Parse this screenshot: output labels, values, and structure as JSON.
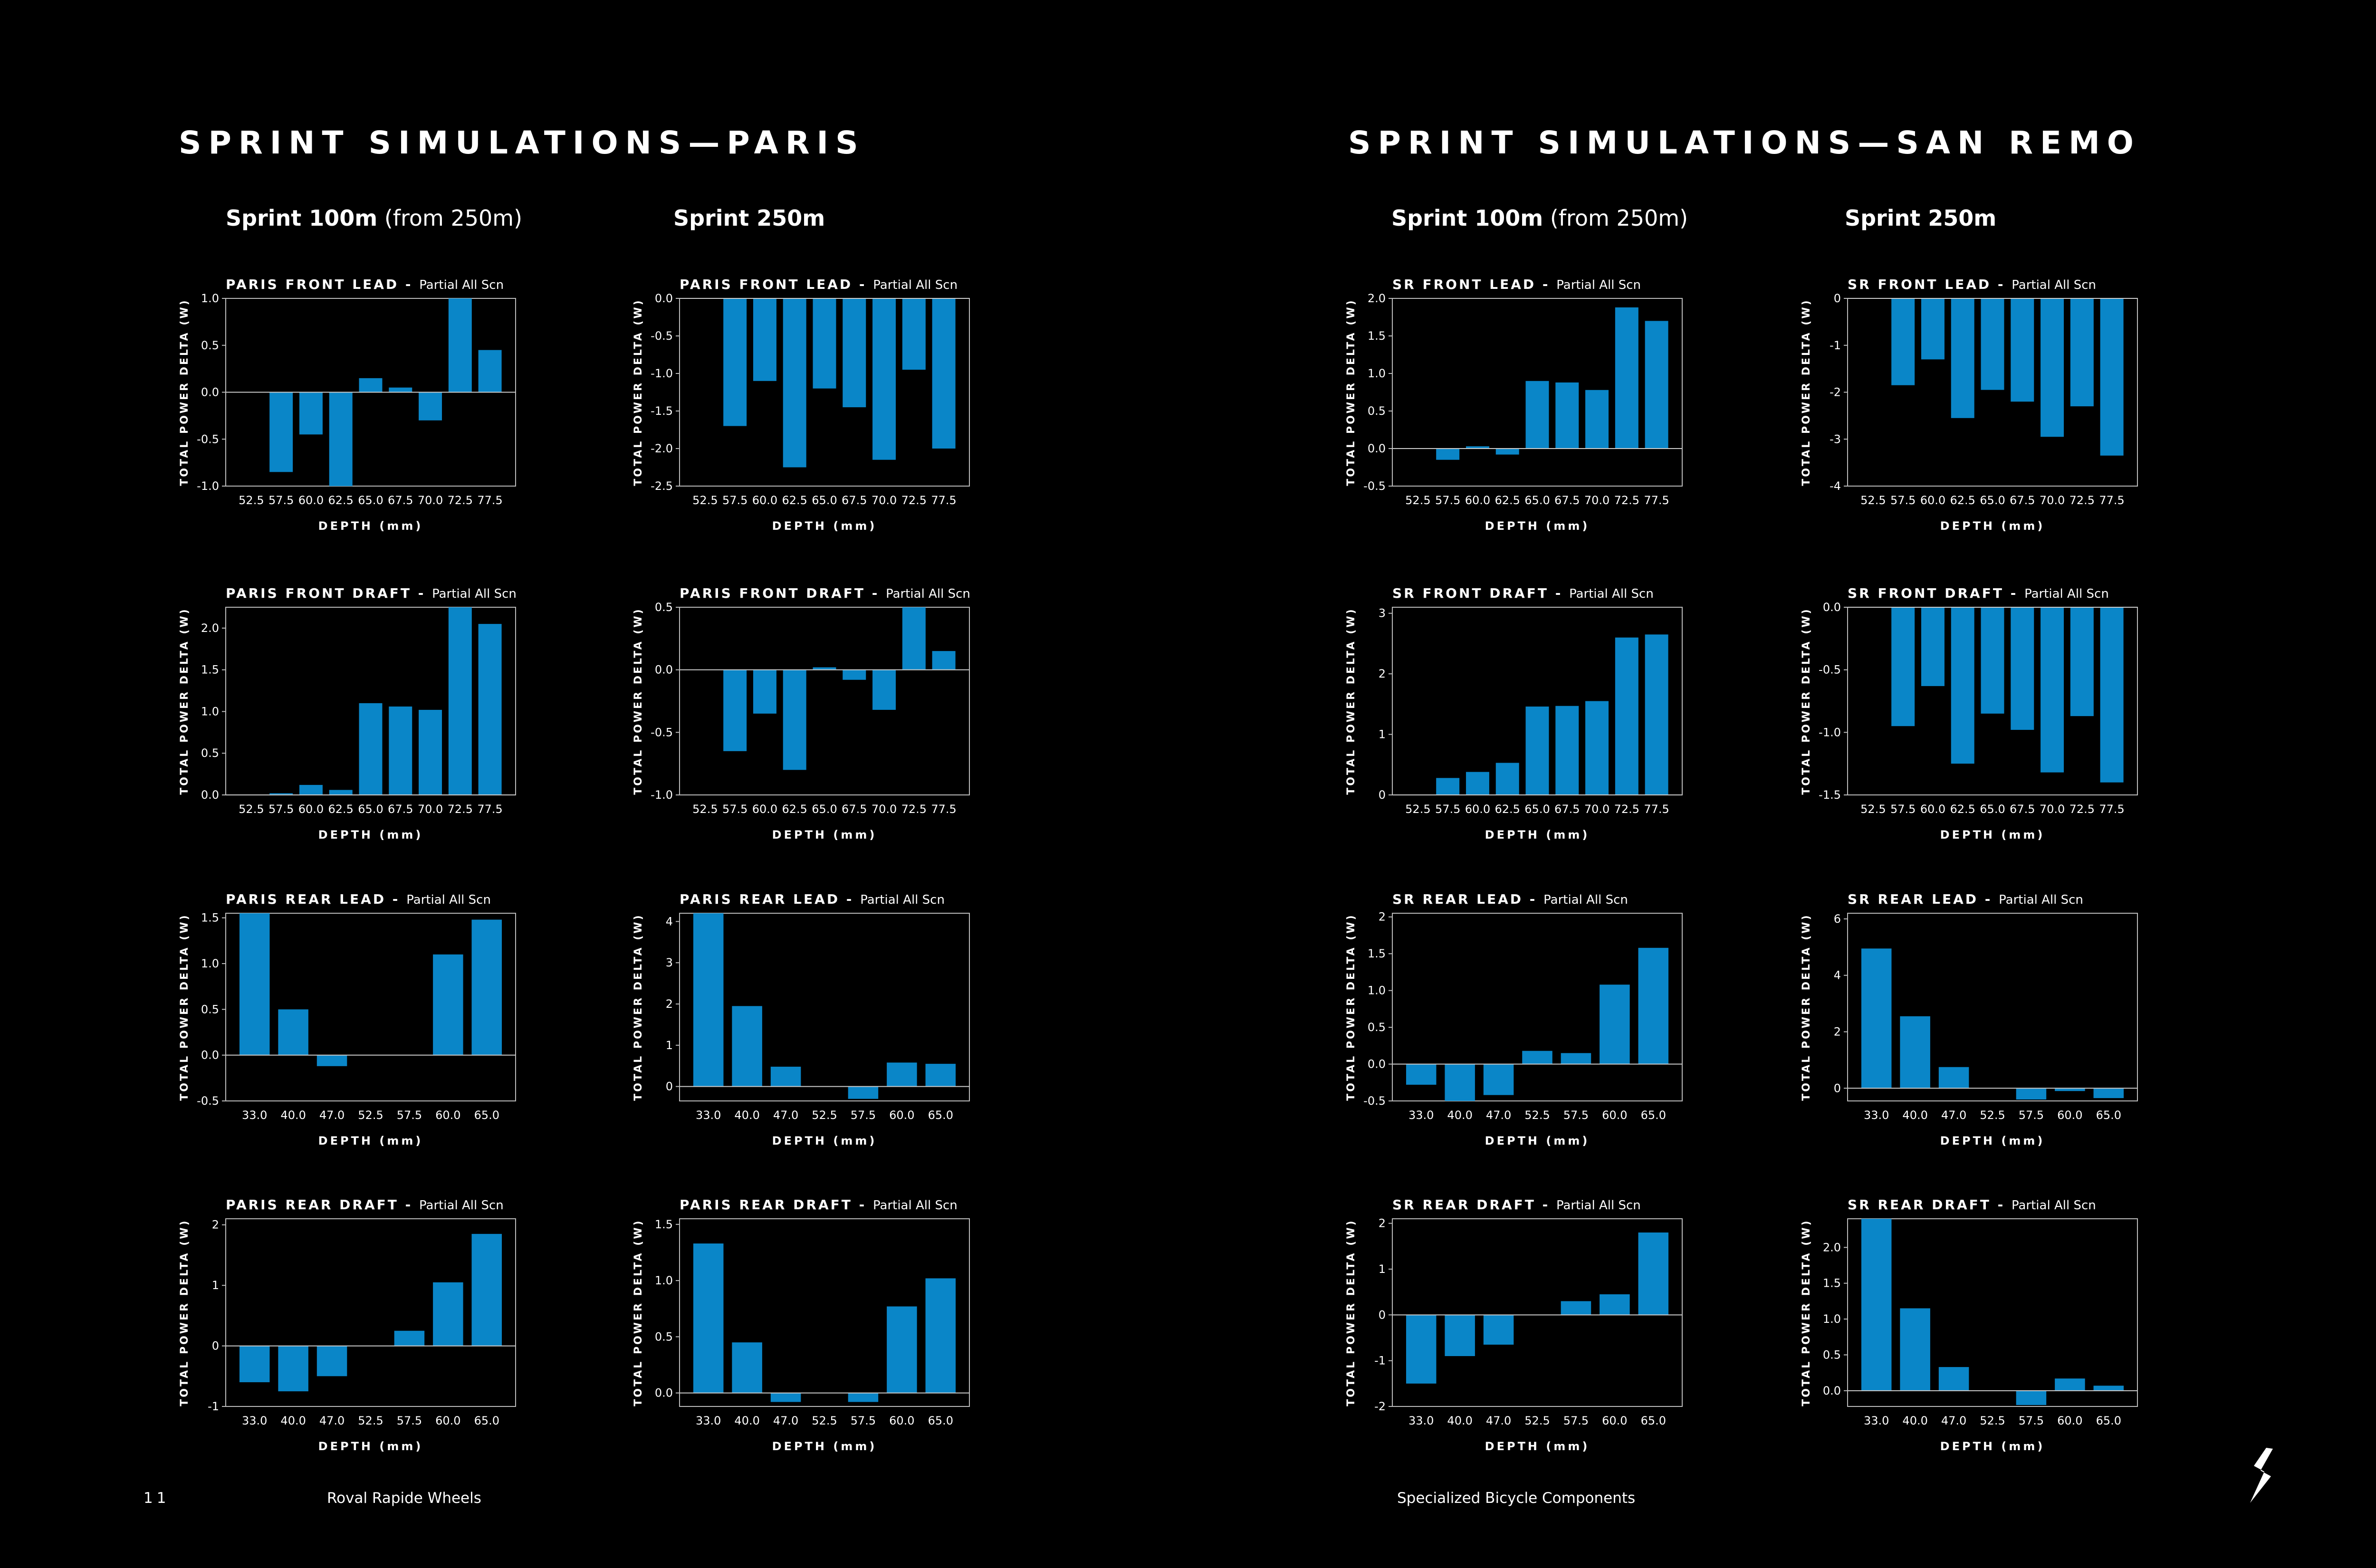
{
  "sections": {
    "paris": "SPRINT SIMULATIONS—PARIS",
    "sanremo": "SPRINT SIMULATIONS—SAN REMO"
  },
  "columns": [
    {
      "bold": "Sprint 100m",
      "rest": " (from 250m)"
    },
    {
      "bold": "Sprint 250m",
      "rest": ""
    },
    {
      "bold": "Sprint 100m",
      "rest": " (from 250m)"
    },
    {
      "bold": "Sprint 250m",
      "rest": ""
    }
  ],
  "footer": {
    "page_number": "11",
    "left_text": "Roval Rapide Wheels",
    "right_text": "Specialized Bicycle Components",
    "logo_icon": "specialized-s-logo-icon"
  },
  "colors": {
    "bar": "#0a86c8",
    "background": "#000000",
    "text": "#ffffff"
  },
  "chart_data": [
    {
      "type": "bar",
      "title": "PARIS FRONT LEAD",
      "subtitle": "Partial All Scn",
      "xlabel": "DEPTH (mm)",
      "ylabel": "TOTAL POWER DELTA (W)",
      "categories": [
        "52.5",
        "57.5",
        "60.0",
        "62.5",
        "65.0",
        "67.5",
        "70.0",
        "72.5",
        "77.5"
      ],
      "values": [
        0,
        -0.85,
        -0.45,
        -1.05,
        0.15,
        0.05,
        -0.3,
        1.05,
        0.45
      ],
      "ylim": [
        -1,
        1
      ],
      "yticks": [
        -1,
        -0.5,
        0,
        0.5,
        1
      ],
      "yticklabels": [
        "-1.0",
        "-0.5",
        "0.0",
        "0.5",
        "1.0"
      ]
    },
    {
      "type": "bar",
      "title": "PARIS FRONT LEAD",
      "subtitle": "Partial All Scn",
      "xlabel": "DEPTH (mm)",
      "ylabel": "TOTAL POWER DELTA (W)",
      "categories": [
        "52.5",
        "57.5",
        "60.0",
        "62.5",
        "65.0",
        "67.5",
        "70.0",
        "72.5",
        "77.5"
      ],
      "values": [
        0,
        -1.7,
        -1.1,
        -2.25,
        -1.2,
        -1.45,
        -2.15,
        -0.95,
        -2.0
      ],
      "ylim": [
        -2.5,
        0
      ],
      "yticks": [
        -2.5,
        -2,
        -1.5,
        -1,
        -0.5,
        0
      ],
      "yticklabels": [
        "-2.5",
        "-2.0",
        "-1.5",
        "-1.0",
        "-0.5",
        "0.0"
      ]
    },
    {
      "type": "bar",
      "title": "SR FRONT LEAD",
      "subtitle": "Partial All Scn",
      "xlabel": "DEPTH (mm)",
      "ylabel": "TOTAL POWER DELTA (W)",
      "categories": [
        "52.5",
        "57.5",
        "60.0",
        "62.5",
        "65.0",
        "67.5",
        "70.0",
        "72.5",
        "77.5"
      ],
      "values": [
        0,
        -0.15,
        0.03,
        -0.08,
        0.9,
        0.88,
        0.78,
        1.88,
        1.7
      ],
      "ylim": [
        -0.5,
        2
      ],
      "yticks": [
        -0.5,
        0,
        0.5,
        1,
        1.5,
        2
      ],
      "yticklabels": [
        "-0.5",
        "0.0",
        "0.5",
        "1.0",
        "1.5",
        "2.0"
      ]
    },
    {
      "type": "bar",
      "title": "SR FRONT LEAD",
      "subtitle": "Partial All Scn",
      "xlabel": "DEPTH (mm)",
      "ylabel": "TOTAL POWER DELTA (W)",
      "categories": [
        "52.5",
        "57.5",
        "60.0",
        "62.5",
        "65.0",
        "67.5",
        "70.0",
        "72.5",
        "77.5"
      ],
      "values": [
        0,
        -1.85,
        -1.3,
        -2.55,
        -1.95,
        -2.2,
        -2.95,
        -2.3,
        -3.35
      ],
      "ylim": [
        -4,
        0
      ],
      "yticks": [
        -4,
        -3,
        -2,
        -1,
        0
      ],
      "yticklabels": [
        "-4",
        "-3",
        "-2",
        "-1",
        "0"
      ]
    },
    {
      "type": "bar",
      "title": "PARIS FRONT DRAFT",
      "subtitle": "Partial All Scn",
      "xlabel": "DEPTH (mm)",
      "ylabel": "TOTAL POWER DELTA (W)",
      "categories": [
        "52.5",
        "57.5",
        "60.0",
        "62.5",
        "65.0",
        "67.5",
        "70.0",
        "72.5",
        "77.5"
      ],
      "values": [
        0,
        0.02,
        0.12,
        0.06,
        1.1,
        1.06,
        1.02,
        2.3,
        2.05
      ],
      "ylim": [
        0,
        2.25
      ],
      "yticks": [
        0,
        0.5,
        1,
        1.5,
        2
      ],
      "yticklabels": [
        "0.0",
        "0.5",
        "1.0",
        "1.5",
        "2.0"
      ]
    },
    {
      "type": "bar",
      "title": "PARIS FRONT DRAFT",
      "subtitle": "Partial All Scn",
      "xlabel": "DEPTH (mm)",
      "ylabel": "TOTAL POWER DELTA (W)",
      "categories": [
        "52.5",
        "57.5",
        "60.0",
        "62.5",
        "65.0",
        "67.5",
        "70.0",
        "72.5",
        "77.5"
      ],
      "values": [
        0,
        -0.65,
        -0.35,
        -0.8,
        0.02,
        -0.08,
        -0.32,
        0.6,
        0.15
      ],
      "ylim": [
        -1,
        0.5
      ],
      "yticks": [
        -1,
        -0.5,
        0,
        0.5
      ],
      "yticklabels": [
        "-1.0",
        "-0.5",
        "0.0",
        "0.5"
      ]
    },
    {
      "type": "bar",
      "title": "SR FRONT DRAFT",
      "subtitle": "Partial All Scn",
      "xlabel": "DEPTH (mm)",
      "ylabel": "TOTAL POWER DELTA (W)",
      "categories": [
        "52.5",
        "57.5",
        "60.0",
        "62.5",
        "65.0",
        "67.5",
        "70.0",
        "72.5",
        "77.5"
      ],
      "values": [
        0,
        0.28,
        0.38,
        0.53,
        1.46,
        1.47,
        1.55,
        2.6,
        2.65
      ],
      "ylim": [
        0,
        3.1
      ],
      "yticks": [
        0,
        1,
        2,
        3
      ],
      "yticklabels": [
        "0",
        "1",
        "2",
        "3"
      ]
    },
    {
      "type": "bar",
      "title": "SR FRONT DRAFT",
      "subtitle": "Partial All Scn",
      "xlabel": "DEPTH (mm)",
      "ylabel": "TOTAL POWER DELTA (W)",
      "categories": [
        "52.5",
        "57.5",
        "60.0",
        "62.5",
        "65.0",
        "67.5",
        "70.0",
        "72.5",
        "77.5"
      ],
      "values": [
        0,
        -0.95,
        -0.63,
        -1.25,
        -0.85,
        -0.98,
        -1.32,
        -0.87,
        -1.4
      ],
      "ylim": [
        -1.5,
        0
      ],
      "yticks": [
        -1.5,
        -1,
        -0.5,
        0
      ],
      "yticklabels": [
        "-1.5",
        "-1.0",
        "-0.5",
        "0.0"
      ]
    },
    {
      "type": "bar",
      "title": "PARIS REAR LEAD",
      "subtitle": "Partial All Scn",
      "xlabel": "DEPTH (mm)",
      "ylabel": "TOTAL POWER DELTA (W)",
      "categories": [
        "33.0",
        "40.0",
        "47.0",
        "52.5",
        "57.5",
        "60.0",
        "65.0"
      ],
      "values": [
        1.55,
        0.5,
        -0.12,
        0,
        0,
        1.1,
        1.48
      ],
      "ylim": [
        -0.5,
        1.55
      ],
      "yticks": [
        -0.5,
        0,
        0.5,
        1,
        1.5
      ],
      "yticklabels": [
        "-0.5",
        "0.0",
        "0.5",
        "1.0",
        "1.5"
      ]
    },
    {
      "type": "bar",
      "title": "PARIS REAR LEAD",
      "subtitle": "Partial All Scn",
      "xlabel": "DEPTH (mm)",
      "ylabel": "TOTAL POWER DELTA (W)",
      "categories": [
        "33.0",
        "40.0",
        "47.0",
        "52.5",
        "57.5",
        "60.0",
        "65.0"
      ],
      "values": [
        4.2,
        1.95,
        0.48,
        0,
        -0.3,
        0.58,
        0.55
      ],
      "ylim": [
        -0.35,
        4.2
      ],
      "yticks": [
        0,
        1,
        2,
        3,
        4
      ],
      "yticklabels": [
        "0",
        "1",
        "2",
        "3",
        "4"
      ]
    },
    {
      "type": "bar",
      "title": "SR REAR LEAD",
      "subtitle": "Partial All Scn",
      "xlabel": "DEPTH (mm)",
      "ylabel": "TOTAL POWER DELTA (W)",
      "categories": [
        "33.0",
        "40.0",
        "47.0",
        "52.5",
        "57.5",
        "60.0",
        "65.0"
      ],
      "values": [
        -0.28,
        -0.5,
        -0.42,
        0.18,
        0.15,
        1.08,
        1.58
      ],
      "ylim": [
        -0.5,
        2.05
      ],
      "yticks": [
        -0.5,
        0,
        0.5,
        1,
        1.5,
        2
      ],
      "yticklabels": [
        "-0.5",
        "0.0",
        "0.5",
        "1.0",
        "1.5",
        "2"
      ]
    },
    {
      "type": "bar",
      "title": "SR REAR LEAD",
      "subtitle": "Partial All Scn",
      "xlabel": "DEPTH (mm)",
      "ylabel": "TOTAL POWER DELTA (W)",
      "categories": [
        "33.0",
        "40.0",
        "47.0",
        "52.5",
        "57.5",
        "60.0",
        "65.0"
      ],
      "values": [
        4.95,
        2.55,
        0.75,
        0,
        -0.4,
        -0.1,
        -0.35
      ],
      "ylim": [
        -0.45,
        6.2
      ],
      "yticks": [
        0,
        2,
        4,
        6
      ],
      "yticklabels": [
        "0",
        "2",
        "4",
        "6"
      ]
    },
    {
      "type": "bar",
      "title": "PARIS REAR DRAFT",
      "subtitle": "Partial All Scn",
      "xlabel": "DEPTH (mm)",
      "ylabel": "TOTAL POWER DELTA (W)",
      "categories": [
        "33.0",
        "40.0",
        "47.0",
        "52.5",
        "57.5",
        "60.0",
        "65.0"
      ],
      "values": [
        -0.6,
        -0.75,
        -0.5,
        0,
        0.25,
        1.05,
        1.85
      ],
      "ylim": [
        -1,
        2.1
      ],
      "yticks": [
        -1,
        0,
        1,
        2
      ],
      "yticklabels": [
        "-1",
        "0",
        "1",
        "2"
      ]
    },
    {
      "type": "bar",
      "title": "PARIS REAR DRAFT",
      "subtitle": "Partial All Scn",
      "xlabel": "DEPTH (mm)",
      "ylabel": "TOTAL POWER DELTA (W)",
      "categories": [
        "33.0",
        "40.0",
        "47.0",
        "52.5",
        "57.5",
        "60.0",
        "65.0"
      ],
      "values": [
        1.33,
        0.45,
        -0.08,
        0,
        -0.08,
        0.77,
        1.02
      ],
      "ylim": [
        -0.12,
        1.55
      ],
      "yticks": [
        0,
        0.5,
        1,
        1.5
      ],
      "yticklabels": [
        "0.0",
        "0.5",
        "1.0",
        "1.5"
      ]
    },
    {
      "type": "bar",
      "title": "SR REAR DRAFT",
      "subtitle": "Partial All Scn",
      "xlabel": "DEPTH (mm)",
      "ylabel": "TOTAL POWER DELTA (W)",
      "categories": [
        "33.0",
        "40.0",
        "47.0",
        "52.5",
        "57.5",
        "60.0",
        "65.0"
      ],
      "values": [
        -1.5,
        -0.9,
        -0.65,
        0,
        0.3,
        0.45,
        1.8
      ],
      "ylim": [
        -2,
        2.1
      ],
      "yticks": [
        -2,
        -1,
        0,
        1,
        2
      ],
      "yticklabels": [
        "-2",
        "-1",
        "0",
        "1",
        "2"
      ]
    },
    {
      "type": "bar",
      "title": "SR REAR DRAFT",
      "subtitle": "Partial All Scn",
      "xlabel": "DEPTH (mm)",
      "ylabel": "TOTAL POWER DELTA (W)",
      "categories": [
        "33.0",
        "40.0",
        "47.0",
        "52.5",
        "57.5",
        "60.0",
        "65.0"
      ],
      "values": [
        2.4,
        1.15,
        0.33,
        0,
        -0.2,
        0.17,
        0.07
      ],
      "ylim": [
        -0.22,
        2.4
      ],
      "yticks": [
        0,
        0.5,
        1,
        1.5,
        2
      ],
      "yticklabels": [
        "0.0",
        "0.5",
        "1.0",
        "1.5",
        "2.0"
      ]
    }
  ]
}
